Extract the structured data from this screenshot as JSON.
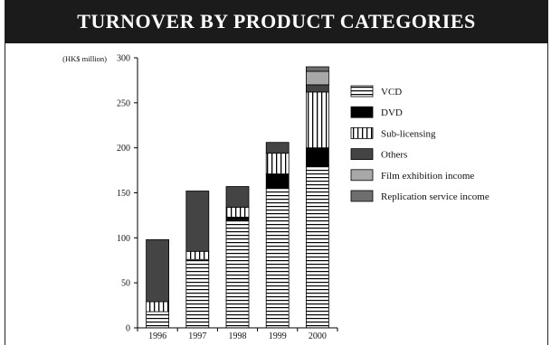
{
  "chart_data": {
    "type": "bar",
    "stacked": true,
    "title": "TURNOVER BY PRODUCT CATEGORIES",
    "unit_label": "(HK$ million)",
    "categories": [
      "1996",
      "1997",
      "1998",
      "1999",
      "2000"
    ],
    "ylim": [
      0,
      300
    ],
    "yticks": [
      0,
      50,
      100,
      150,
      200,
      250,
      300
    ],
    "grid": false,
    "legend_position": "right",
    "series": [
      {
        "name": "VCD",
        "pattern": "horizontal-stripes",
        "color": "#000000",
        "values": [
          18,
          76,
          120,
          155,
          180
        ]
      },
      {
        "name": "DVD",
        "pattern": "solid",
        "color": "#000000",
        "values": [
          0,
          0,
          3,
          16,
          20
        ]
      },
      {
        "name": "Sub-licensing",
        "pattern": "vertical-stripes",
        "color": "#000000",
        "values": [
          11,
          9,
          11,
          23,
          62
        ]
      },
      {
        "name": "Others",
        "pattern": "solid",
        "color": "#444444",
        "values": [
          69,
          67,
          23,
          12,
          8
        ]
      },
      {
        "name": "Film exhibition income",
        "pattern": "solid",
        "color": "#a8a8a8",
        "values": [
          0,
          0,
          0,
          0,
          15
        ]
      },
      {
        "name": "Replication service income",
        "pattern": "solid",
        "color": "#6e6e6e",
        "values": [
          0,
          0,
          0,
          0,
          5
        ]
      }
    ]
  }
}
